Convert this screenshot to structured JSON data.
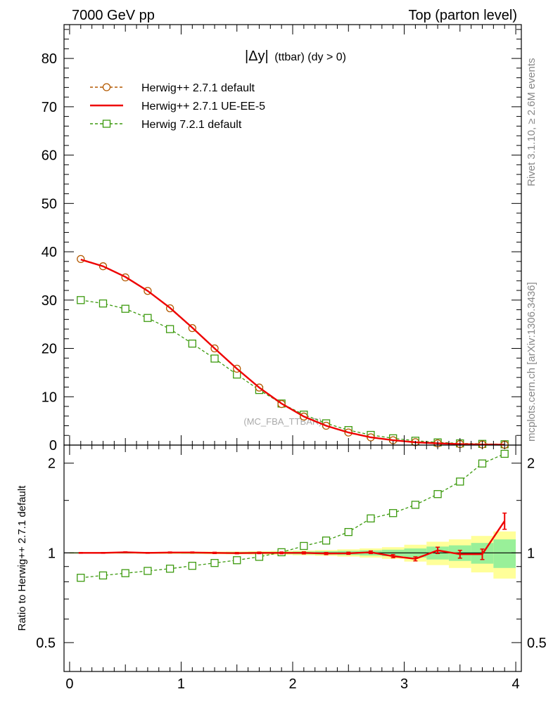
{
  "header": {
    "left": "7000 GeV pp",
    "right": "Top (parton level)"
  },
  "side": {
    "rivet": "Rivet 3.1.10, ≥ 2.6M events",
    "source": "mcplots.cern.ch [arXiv:1306.3436]"
  },
  "watermark": "(MC_FBA_TTBAR)",
  "colors": {
    "ref": "#b35900",
    "ue": "#ee0000",
    "h7": "#3c9a0e",
    "band_inner": "#99f099",
    "band_outer": "#ffff99"
  },
  "chart_data": [
    {
      "type": "line",
      "title_main": "|Δy|",
      "title_sub": "(ttbar) (dy > 0)",
      "xlim": [
        -0.05,
        4.05
      ],
      "ylim": [
        0,
        87
      ],
      "yticks": [
        0,
        10,
        20,
        30,
        40,
        50,
        60,
        70,
        80
      ],
      "x": [
        0.1,
        0.3,
        0.5,
        0.7,
        0.9,
        1.1,
        1.3,
        1.5,
        1.7,
        1.9,
        2.1,
        2.3,
        2.5,
        2.7,
        2.9,
        3.1,
        3.3,
        3.5,
        3.7,
        3.9
      ],
      "series": [
        {
          "name": "Herwig++ 2.7.1 default",
          "key": "ref",
          "values": [
            38.5,
            37.0,
            34.7,
            31.9,
            28.3,
            24.2,
            20.0,
            15.8,
            11.9,
            8.5,
            5.9,
            4.0,
            2.6,
            1.6,
            1.0,
            0.6,
            0.35,
            0.2,
            0.12,
            0.07
          ]
        },
        {
          "name": "Herwig++ 2.7.1 UE-EE-5",
          "key": "ue",
          "values": [
            38.4,
            37.0,
            34.8,
            31.9,
            28.4,
            24.3,
            20.0,
            15.8,
            11.9,
            8.6,
            5.9,
            4.0,
            2.6,
            1.6,
            1.0,
            0.58,
            0.36,
            0.2,
            0.12,
            0.09
          ]
        },
        {
          "name": "Herwig 7.2.1 default",
          "key": "h7",
          "values": [
            30.0,
            29.3,
            28.2,
            26.3,
            24.0,
            21.0,
            17.9,
            14.6,
            11.4,
            8.6,
            6.3,
            4.5,
            3.1,
            2.1,
            1.4,
            0.9,
            0.55,
            0.35,
            0.25,
            0.17
          ]
        }
      ]
    },
    {
      "type": "line",
      "ylabel": "Ratio to Herwig++ 2.7.1 default",
      "xlim": [
        -0.05,
        4.05
      ],
      "ylim": [
        0.4,
        2.3
      ],
      "log_y": true,
      "yticks": [
        0.5,
        1,
        2
      ],
      "xticks": [
        0,
        1,
        2,
        3,
        4
      ],
      "x": [
        0.1,
        0.3,
        0.5,
        0.7,
        0.9,
        1.1,
        1.3,
        1.5,
        1.7,
        1.9,
        2.1,
        2.3,
        2.5,
        2.7,
        2.9,
        3.1,
        3.3,
        3.5,
        3.7,
        3.9
      ],
      "series": [
        {
          "name": "Herwig++ 2.7.1 UE-EE-5",
          "key": "ue",
          "values": [
            1.0,
            1.0,
            1.005,
            1.0,
            1.003,
            1.003,
            1.0,
            0.998,
            1.0,
            1.0,
            1.0,
            0.995,
            0.997,
            1.005,
            0.975,
            0.955,
            1.02,
            0.99,
            0.99,
            1.28
          ],
          "errors": [
            0.003,
            0.003,
            0.003,
            0.003,
            0.004,
            0.004,
            0.005,
            0.005,
            0.006,
            0.007,
            0.008,
            0.008,
            0.008,
            0.01,
            0.012,
            0.015,
            0.025,
            0.03,
            0.04,
            0.08
          ]
        },
        {
          "name": "Herwig 7.2.1 default",
          "key": "h7",
          "values": [
            0.825,
            0.84,
            0.855,
            0.87,
            0.885,
            0.905,
            0.925,
            0.945,
            0.97,
            1.005,
            1.055,
            1.1,
            1.175,
            1.305,
            1.36,
            1.45,
            1.575,
            1.735,
            1.995,
            2.15
          ],
          "errors": [
            0.003,
            0.003,
            0.003,
            0.003,
            0.004,
            0.004,
            0.005,
            0.005,
            0.006,
            0.007,
            0.008,
            0.009,
            0.01,
            0.012,
            0.015,
            0.02,
            0.025,
            0.03,
            0.04,
            0.06
          ]
        }
      ],
      "band_inner": [
        0.004,
        0.004,
        0.004,
        0.005,
        0.005,
        0.006,
        0.006,
        0.007,
        0.008,
        0.009,
        0.011,
        0.013,
        0.016,
        0.02,
        0.025,
        0.035,
        0.05,
        0.06,
        0.08,
        0.11
      ],
      "band_outer": [
        0.006,
        0.006,
        0.006,
        0.007,
        0.008,
        0.009,
        0.01,
        0.011,
        0.013,
        0.015,
        0.018,
        0.022,
        0.028,
        0.035,
        0.045,
        0.065,
        0.09,
        0.11,
        0.14,
        0.18
      ]
    }
  ]
}
